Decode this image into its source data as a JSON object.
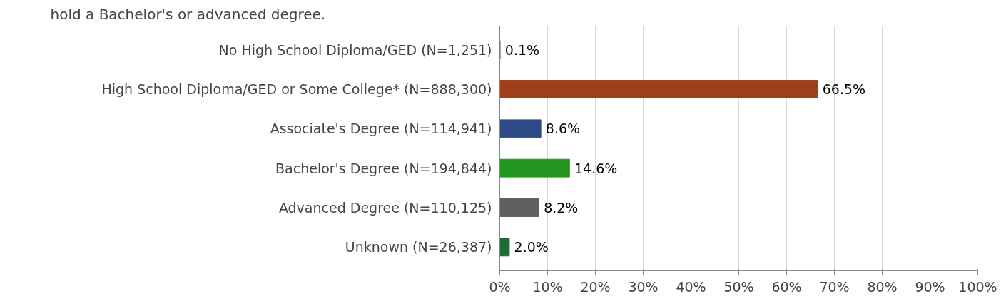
{
  "chart_data": {
    "type": "bar",
    "orientation": "horizontal",
    "title": "hold a Bachelor's or advanced degree.",
    "categories": [
      "No High School Diploma/GED (N=1,251)",
      "High School Diploma/GED or Some College* (N=888,300)",
      "Associate's Degree (N=114,941)",
      "Bachelor's Degree (N=194,844)",
      "Advanced Degree (N=110,125)",
      "Unknown (N=26,387)"
    ],
    "values": [
      0.1,
      66.5,
      8.6,
      14.6,
      8.2,
      2.0
    ],
    "colors": [
      "#7f7f7f",
      "#a0401a",
      "#2e4a87",
      "#23961f",
      "#5f5f5f",
      "#1e6b35"
    ],
    "value_labels": [
      "0.1%",
      "66.5%",
      "8.6%",
      "14.6%",
      "8.2%",
      "2.0%"
    ],
    "xlim": [
      0,
      100
    ],
    "xticks": [
      {
        "value": 0,
        "label": "0%"
      },
      {
        "value": 10,
        "label": "10%"
      },
      {
        "value": 20,
        "label": "20%"
      },
      {
        "value": 30,
        "label": "30%"
      },
      {
        "value": 40,
        "label": "40%"
      },
      {
        "value": 50,
        "label": "50%"
      },
      {
        "value": 60,
        "label": "60%"
      },
      {
        "value": 70,
        "label": "70%"
      },
      {
        "value": 80,
        "label": "80%"
      },
      {
        "value": 90,
        "label": "90%"
      },
      {
        "value": 100,
        "label": "100%"
      }
    ],
    "grid": "x"
  }
}
